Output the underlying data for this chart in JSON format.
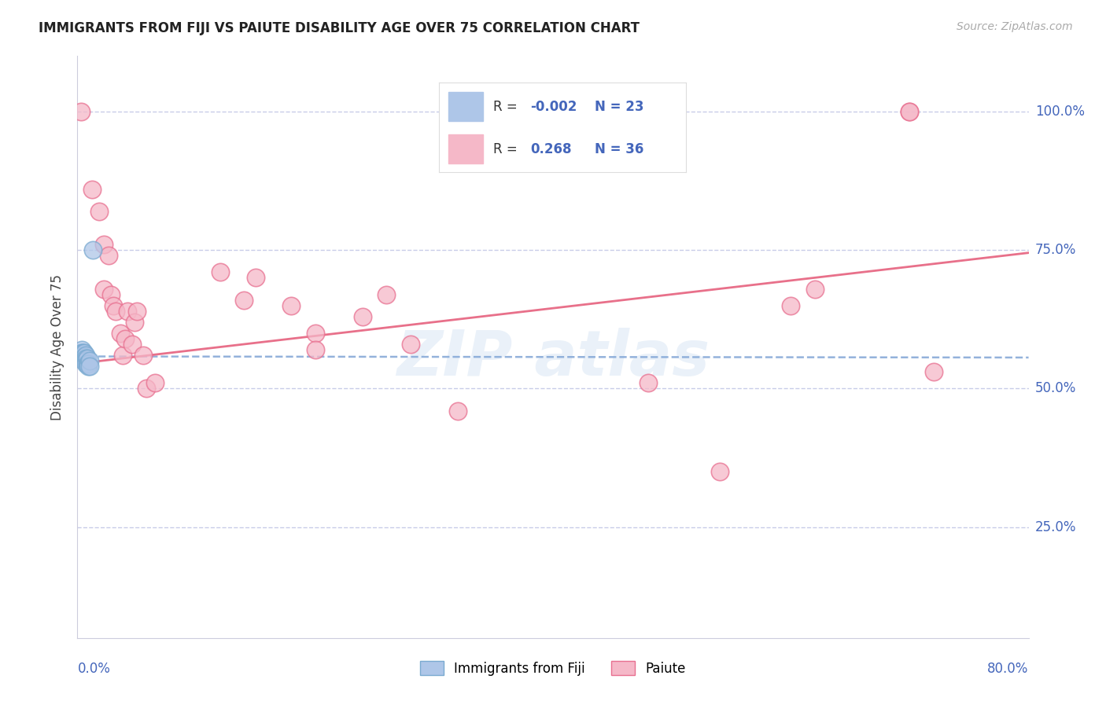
{
  "title": "IMMIGRANTS FROM FIJI VS PAIUTE DISABILITY AGE OVER 75 CORRELATION CHART",
  "source": "Source: ZipAtlas.com",
  "ylabel": "Disability Age Over 75",
  "yticks": [
    0.25,
    0.5,
    0.75,
    1.0
  ],
  "ytick_labels": [
    "25.0%",
    "50.0%",
    "75.0%",
    "100.0%"
  ],
  "xlim": [
    0.0,
    0.8
  ],
  "ylim": [
    0.05,
    1.1
  ],
  "legend_fiji_R": "-0.002",
  "legend_fiji_N": "23",
  "legend_paiute_R": "0.268",
  "legend_paiute_N": "36",
  "fiji_color": "#aec6e8",
  "paiute_color": "#f5b8c8",
  "fiji_edge_color": "#7aaad0",
  "paiute_edge_color": "#e87090",
  "fiji_line_color": "#88aad8",
  "paiute_line_color": "#e8708a",
  "axis_label_color": "#4466bb",
  "grid_color": "#c8cce8",
  "fiji_x": [
    0.003,
    0.003,
    0.004,
    0.004,
    0.004,
    0.005,
    0.005,
    0.005,
    0.005,
    0.006,
    0.006,
    0.006,
    0.007,
    0.007,
    0.007,
    0.007,
    0.008,
    0.008,
    0.009,
    0.009,
    0.01,
    0.01,
    0.013
  ],
  "fiji_y": [
    0.565,
    0.56,
    0.57,
    0.565,
    0.555,
    0.565,
    0.56,
    0.555,
    0.55,
    0.565,
    0.558,
    0.552,
    0.56,
    0.555,
    0.55,
    0.545,
    0.555,
    0.545,
    0.545,
    0.54,
    0.55,
    0.54,
    0.75
  ],
  "paiute_x": [
    0.003,
    0.012,
    0.018,
    0.022,
    0.022,
    0.026,
    0.028,
    0.03,
    0.032,
    0.036,
    0.038,
    0.04,
    0.042,
    0.046,
    0.048,
    0.05,
    0.055,
    0.058,
    0.065,
    0.12,
    0.14,
    0.15,
    0.18,
    0.2,
    0.2,
    0.24,
    0.26,
    0.28,
    0.32,
    0.48,
    0.54,
    0.6,
    0.62,
    0.7,
    0.7,
    0.72
  ],
  "paiute_y": [
    1.0,
    0.86,
    0.82,
    0.76,
    0.68,
    0.74,
    0.67,
    0.65,
    0.64,
    0.6,
    0.56,
    0.59,
    0.64,
    0.58,
    0.62,
    0.64,
    0.56,
    0.5,
    0.51,
    0.71,
    0.66,
    0.7,
    0.65,
    0.6,
    0.57,
    0.63,
    0.67,
    0.58,
    0.46,
    0.51,
    0.35,
    0.65,
    0.68,
    1.0,
    1.0,
    0.53
  ],
  "fiji_line_start_y": 0.558,
  "fiji_line_end_y": 0.556,
  "paiute_line_start_y": 0.545,
  "paiute_line_end_y": 0.745
}
